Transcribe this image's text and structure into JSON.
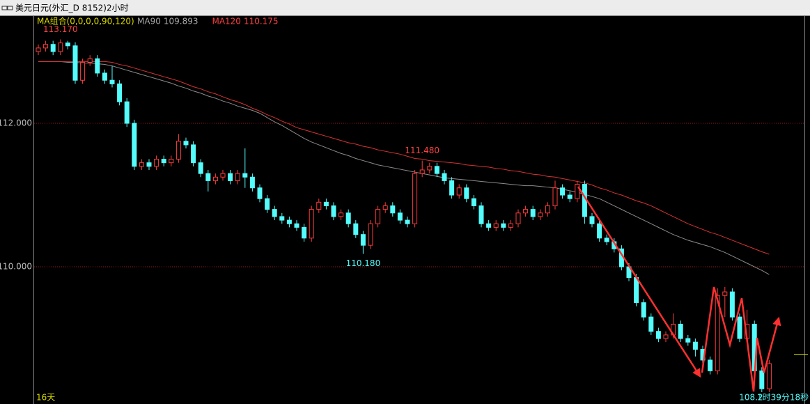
{
  "chart_data": {
    "type": "candlestick",
    "title": "美元日元(外汇_D 8152)2小时",
    "indicator_label": "MA组合(0,0,0,0,90,120)",
    "period_label": "16天",
    "countdown": "1时39分18秒",
    "up_color": "#ff3c3c",
    "down_color": "#54fcfc",
    "grid": true,
    "ylim": [
      108.107,
      113.505
    ],
    "yticks": [
      {
        "value": 112,
        "label": "112.000"
      },
      {
        "value": 110,
        "label": "110.000"
      }
    ],
    "open": [
      113.0,
      113.05,
      113.1,
      113.0,
      113.12,
      113.08,
      112.6,
      112.85,
      112.9,
      112.7,
      112.6,
      112.55,
      112.3,
      112.0,
      111.4,
      111.45,
      111.4,
      111.5,
      111.45,
      111.5,
      111.75,
      111.7,
      111.45,
      111.3,
      111.2,
      111.25,
      111.3,
      111.2,
      111.3,
      111.25,
      111.1,
      110.95,
      110.8,
      110.7,
      110.65,
      110.6,
      110.55,
      110.4,
      110.8,
      110.9,
      110.85,
      110.7,
      110.75,
      110.6,
      110.45,
      110.3,
      110.6,
      110.8,
      110.85,
      110.75,
      110.65,
      110.6,
      111.3,
      111.35,
      111.4,
      111.3,
      111.2,
      111.0,
      111.1,
      110.95,
      110.85,
      110.6,
      110.55,
      110.6,
      110.55,
      110.6,
      110.75,
      110.8,
      110.7,
      110.75,
      110.85,
      111.1,
      111.0,
      110.95,
      111.15,
      110.7,
      110.6,
      110.4,
      110.35,
      110.25,
      110.0,
      109.85,
      109.5,
      109.3,
      109.1,
      109.0,
      109.05,
      109.2,
      109.0,
      108.95,
      108.85,
      108.7,
      108.55,
      109.6,
      109.65,
      109.3,
      109.0,
      109.2,
      108.55,
      108.3
    ],
    "high": [
      113.1,
      113.15,
      113.15,
      113.17,
      113.15,
      113.13,
      112.9,
      112.95,
      112.95,
      112.75,
      112.8,
      112.6,
      112.35,
      112.05,
      111.5,
      111.5,
      111.55,
      111.55,
      111.55,
      111.85,
      111.8,
      111.75,
      111.5,
      111.35,
      111.3,
      111.35,
      111.35,
      111.35,
      111.65,
      111.3,
      111.15,
      111.0,
      110.85,
      110.75,
      110.7,
      110.65,
      110.6,
      110.85,
      110.95,
      110.95,
      110.9,
      110.8,
      110.8,
      110.65,
      110.5,
      110.65,
      110.85,
      110.9,
      110.9,
      110.8,
      110.7,
      111.35,
      111.48,
      111.45,
      111.45,
      111.35,
      111.25,
      111.15,
      111.15,
      111.0,
      110.9,
      110.65,
      110.65,
      110.65,
      110.65,
      110.8,
      110.85,
      110.85,
      110.8,
      110.9,
      111.2,
      111.15,
      111.05,
      111.2,
      111.2,
      110.75,
      110.65,
      110.45,
      110.4,
      110.3,
      110.05,
      109.9,
      109.55,
      109.35,
      109.15,
      109.1,
      109.35,
      109.25,
      109.05,
      109.0,
      108.9,
      108.75,
      109.7,
      109.72,
      109.7,
      109.35,
      109.4,
      109.25,
      108.6,
      108.7
    ],
    "low": [
      112.95,
      113.0,
      112.95,
      112.95,
      113.03,
      112.55,
      112.55,
      112.8,
      112.65,
      112.55,
      112.5,
      112.25,
      111.95,
      111.35,
      111.35,
      111.35,
      111.35,
      111.4,
      111.4,
      111.45,
      111.65,
      111.4,
      111.25,
      111.05,
      111.15,
      111.2,
      111.15,
      111.15,
      111.1,
      111.05,
      110.9,
      110.75,
      110.65,
      110.6,
      110.55,
      110.5,
      110.35,
      110.35,
      110.75,
      110.8,
      110.65,
      110.65,
      110.55,
      110.4,
      110.18,
      110.25,
      110.55,
      110.75,
      110.7,
      110.6,
      110.55,
      110.55,
      111.25,
      111.3,
      111.25,
      111.15,
      110.95,
      110.95,
      110.9,
      110.8,
      110.55,
      110.5,
      110.5,
      110.5,
      110.5,
      110.55,
      110.7,
      110.65,
      110.65,
      110.7,
      110.8,
      110.95,
      110.9,
      110.9,
      110.6,
      110.55,
      110.35,
      110.3,
      110.2,
      109.95,
      109.8,
      109.45,
      109.25,
      109.05,
      108.95,
      108.95,
      109.0,
      108.95,
      108.9,
      108.75,
      108.6,
      108.5,
      108.5,
      109.3,
      109.25,
      108.95,
      108.95,
      108.5,
      108.2,
      108.25
    ],
    "close": [
      113.05,
      113.1,
      113.0,
      113.12,
      113.08,
      112.6,
      112.85,
      112.9,
      112.7,
      112.6,
      112.55,
      112.3,
      112.0,
      111.4,
      111.45,
      111.4,
      111.5,
      111.45,
      111.5,
      111.75,
      111.7,
      111.45,
      111.3,
      111.2,
      111.25,
      111.3,
      111.2,
      111.3,
      111.25,
      111.1,
      110.95,
      110.8,
      110.7,
      110.65,
      110.6,
      110.55,
      110.4,
      110.8,
      110.9,
      110.85,
      110.7,
      110.75,
      110.6,
      110.45,
      110.3,
      110.6,
      110.8,
      110.85,
      110.75,
      110.65,
      110.6,
      111.3,
      111.35,
      111.4,
      111.3,
      111.2,
      111.0,
      111.1,
      110.95,
      110.85,
      110.6,
      110.55,
      110.6,
      110.55,
      110.6,
      110.75,
      110.8,
      110.7,
      110.75,
      110.85,
      111.1,
      111.0,
      110.95,
      111.15,
      110.7,
      110.6,
      110.4,
      110.35,
      110.25,
      110.0,
      109.85,
      109.5,
      109.3,
      109.1,
      109.0,
      109.05,
      109.2,
      109.0,
      108.95,
      108.85,
      108.7,
      108.55,
      109.6,
      109.65,
      109.3,
      109.0,
      109.2,
      108.55,
      108.3,
      108.65
    ],
    "series": [
      {
        "name": "MA90",
        "color": "#8c8c8c",
        "label_color": "#a8a8a8",
        "values": [
          112.86,
          112.86,
          112.86,
          112.86,
          112.85,
          112.85,
          112.84,
          112.84,
          112.83,
          112.82,
          112.8,
          112.77,
          112.74,
          112.71,
          112.68,
          112.65,
          112.62,
          112.59,
          112.56,
          112.52,
          112.49,
          112.45,
          112.42,
          112.38,
          112.35,
          112.31,
          112.28,
          112.24,
          112.21,
          112.18,
          112.14,
          112.08,
          112.02,
          111.97,
          111.91,
          111.85,
          111.79,
          111.74,
          111.7,
          111.66,
          111.62,
          111.58,
          111.55,
          111.51,
          111.48,
          111.45,
          111.42,
          111.4,
          111.38,
          111.36,
          111.34,
          111.32,
          111.3,
          111.28,
          111.26,
          111.24,
          111.23,
          111.22,
          111.21,
          111.2,
          111.19,
          111.18,
          111.17,
          111.16,
          111.15,
          111.14,
          111.13,
          111.13,
          111.12,
          111.11,
          111.1,
          111.08,
          111.06,
          111.04,
          111.01,
          110.98,
          110.95,
          110.9,
          110.85,
          110.8,
          110.75,
          110.7,
          110.65,
          110.6,
          110.55,
          110.5,
          110.45,
          110.41,
          110.37,
          110.34,
          110.31,
          110.28,
          110.24,
          110.2,
          110.15,
          110.1,
          110.05,
          110.0,
          109.95,
          109.893
        ]
      },
      {
        "name": "MA120",
        "color": "#d83232",
        "label_color": "#ff4040",
        "values": [
          112.86,
          112.86,
          112.86,
          112.86,
          112.86,
          112.86,
          112.86,
          112.86,
          112.86,
          112.86,
          112.85,
          112.82,
          112.8,
          112.77,
          112.74,
          112.71,
          112.68,
          112.65,
          112.62,
          112.59,
          112.55,
          112.51,
          112.48,
          112.44,
          112.41,
          112.37,
          112.33,
          112.3,
          112.26,
          112.21,
          112.17,
          112.12,
          112.08,
          112.03,
          111.99,
          111.94,
          111.91,
          111.88,
          111.85,
          111.82,
          111.79,
          111.76,
          111.73,
          111.71,
          111.68,
          111.66,
          111.63,
          111.61,
          111.59,
          111.57,
          111.54,
          111.51,
          111.5,
          111.48,
          111.47,
          111.46,
          111.45,
          111.44,
          111.42,
          111.41,
          111.4,
          111.39,
          111.37,
          111.36,
          111.34,
          111.33,
          111.31,
          111.29,
          111.28,
          111.26,
          111.25,
          111.23,
          111.21,
          111.19,
          111.17,
          111.14,
          111.1,
          111.07,
          111.03,
          111.0,
          110.96,
          110.92,
          110.89,
          110.85,
          110.8,
          110.75,
          110.7,
          110.65,
          110.6,
          110.56,
          110.52,
          110.48,
          110.45,
          110.41,
          110.37,
          110.33,
          110.29,
          110.25,
          110.21,
          110.175
        ]
      }
    ],
    "annotations": [
      {
        "value": 113.17,
        "label": "113.170",
        "color": "#ff4040"
      },
      {
        "value": 111.48,
        "label": "111.480",
        "color": "#ff4040"
      },
      {
        "value": 110.18,
        "label": "110.180",
        "color": "#54fcfc"
      },
      {
        "value": 108.2,
        "label": "108.2",
        "color": "#54fcfc"
      }
    ]
  }
}
